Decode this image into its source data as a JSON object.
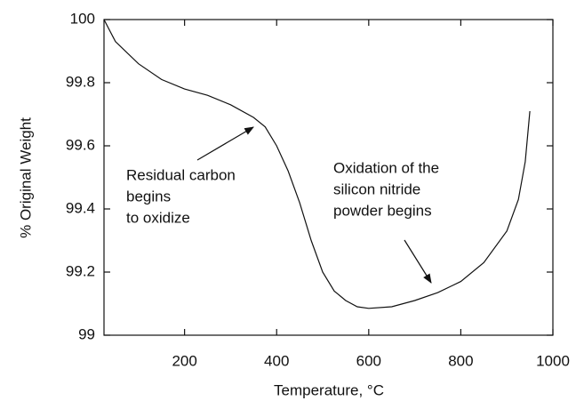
{
  "chart_data": {
    "type": "line",
    "xlabel": "Temperature, °C",
    "ylabel": "% Original Weight",
    "x": [
      25,
      50,
      100,
      150,
      200,
      250,
      300,
      350,
      375,
      400,
      425,
      450,
      475,
      500,
      525,
      550,
      575,
      600,
      650,
      700,
      750,
      800,
      850,
      900,
      925,
      940,
      950
    ],
    "series": [
      {
        "color": "#111111",
        "values": [
          100,
          99.93,
          99.86,
          99.81,
          99.78,
          99.76,
          99.73,
          99.69,
          99.66,
          99.6,
          99.52,
          99.42,
          99.3,
          99.2,
          99.14,
          99.11,
          99.09,
          99.085,
          99.09,
          99.11,
          99.135,
          99.17,
          99.23,
          99.33,
          99.43,
          99.55,
          99.71
        ]
      }
    ],
    "xlim": [
      25,
      1000
    ],
    "xticks": [
      200,
      400,
      600,
      800,
      1000
    ],
    "ylim": [
      99,
      100
    ],
    "yticks": [
      99,
      99.2,
      99.4,
      99.6,
      99.8,
      100
    ],
    "annotations": [
      {
        "lines": [
          "Residual carbon",
          "begins",
          "to oxidize"
        ]
      },
      {
        "lines": [
          "Oxidation of the",
          "silicon nitride",
          "powder begins"
        ]
      }
    ]
  }
}
